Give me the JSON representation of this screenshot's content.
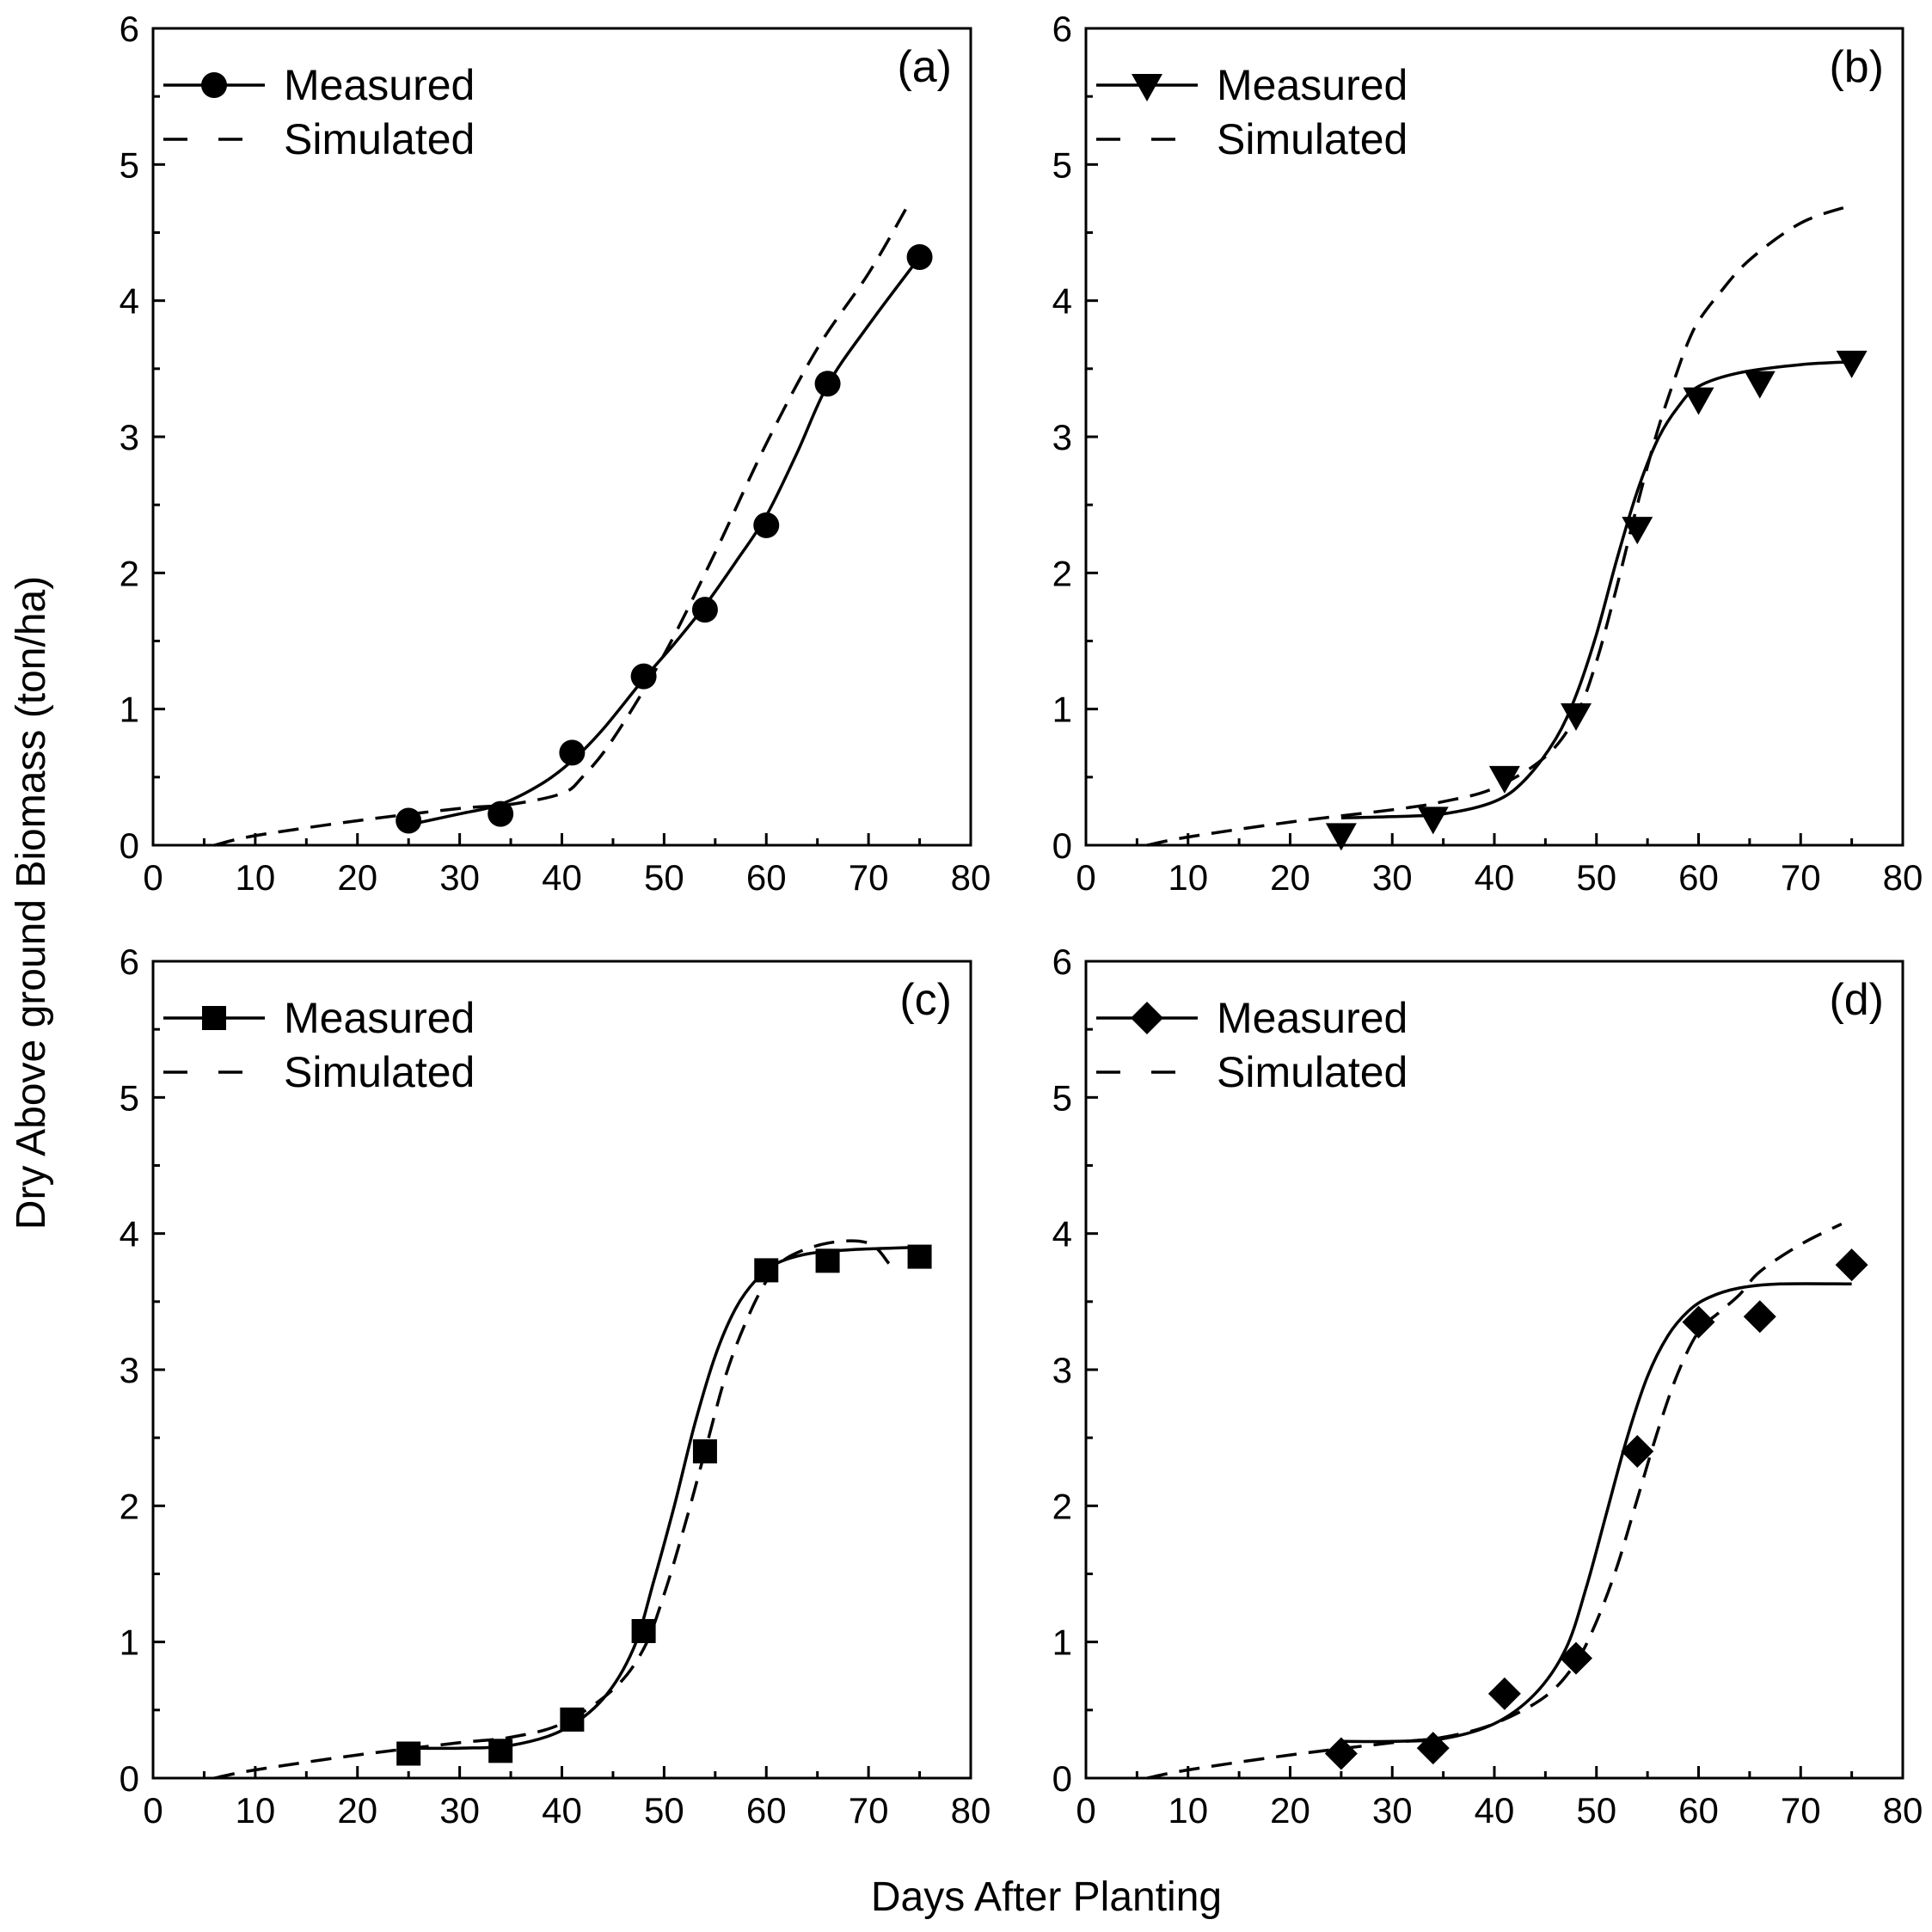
{
  "figure": {
    "y_axis_title": "Dry Above ground Biomass (ton/ha)",
    "x_axis_title": "Days After Planting"
  },
  "chart_data": [
    {
      "type": "line",
      "panel_label": "(a)",
      "marker": "circle",
      "xlim": [
        0,
        80
      ],
      "ylim": [
        0,
        6
      ],
      "xticks": [
        0,
        10,
        20,
        30,
        40,
        50,
        60,
        70,
        80
      ],
      "yticks": [
        0,
        1,
        2,
        3,
        4,
        5,
        6
      ],
      "legend": {
        "position": "top-left",
        "entries": [
          "Measured",
          "Simulated"
        ]
      },
      "series": [
        {
          "name": "Measured",
          "style": "solid",
          "x": [
            25,
            34,
            41,
            48,
            54,
            60,
            66,
            75
          ],
          "y": [
            0.18,
            0.23,
            0.68,
            1.24,
            1.73,
            2.35,
            3.39,
            4.32
          ]
        },
        {
          "name": "Measured (fitted curve)",
          "style": "solid",
          "x": [
            25,
            30,
            34,
            38,
            41,
            44,
            48,
            51,
            54,
            57,
            60,
            63,
            66,
            70,
            75
          ],
          "y": [
            0.15,
            0.23,
            0.3,
            0.45,
            0.62,
            0.85,
            1.22,
            1.48,
            1.76,
            2.08,
            2.42,
            2.88,
            3.38,
            3.82,
            4.32
          ]
        },
        {
          "name": "Simulated",
          "style": "dashed",
          "x": [
            6,
            10,
            20,
            30,
            35,
            40,
            42,
            45,
            50,
            55,
            60,
            65,
            70,
            74
          ],
          "y": [
            0,
            0.07,
            0.18,
            0.27,
            0.3,
            0.38,
            0.5,
            0.78,
            1.4,
            2.15,
            2.95,
            3.65,
            4.2,
            4.72
          ]
        }
      ]
    },
    {
      "type": "line",
      "panel_label": "(b)",
      "marker": "triangle-down",
      "xlim": [
        0,
        80
      ],
      "ylim": [
        0,
        6
      ],
      "xticks": [
        0,
        10,
        20,
        30,
        40,
        50,
        60,
        70,
        80
      ],
      "yticks": [
        0,
        1,
        2,
        3,
        4,
        5,
        6
      ],
      "legend": {
        "position": "top-left",
        "entries": [
          "Measured",
          "Simulated"
        ]
      },
      "series": [
        {
          "name": "Measured",
          "style": "solid",
          "x": [
            25,
            34,
            41,
            48,
            54,
            60,
            66,
            75
          ],
          "y": [
            0.08,
            0.2,
            0.5,
            0.96,
            2.33,
            3.28,
            3.4,
            3.55
          ]
        },
        {
          "name": "Measured (fitted curve)",
          "style": "solid",
          "x": [
            25,
            30,
            35,
            40,
            43,
            46,
            48,
            50,
            52,
            54,
            56,
            58,
            60,
            64,
            70,
            75
          ],
          "y": [
            0.2,
            0.21,
            0.23,
            0.32,
            0.48,
            0.78,
            1.1,
            1.55,
            2.1,
            2.6,
            2.98,
            3.22,
            3.37,
            3.47,
            3.53,
            3.55
          ]
        },
        {
          "name": "Simulated",
          "style": "dashed",
          "x": [
            6,
            10,
            20,
            30,
            35,
            40,
            45,
            48,
            50,
            52,
            54,
            56,
            58,
            59,
            60,
            62,
            65,
            70,
            75
          ],
          "y": [
            0,
            0.06,
            0.17,
            0.26,
            0.32,
            0.42,
            0.65,
            0.95,
            1.35,
            1.9,
            2.5,
            3.05,
            3.5,
            3.7,
            3.85,
            4.05,
            4.3,
            4.57,
            4.7
          ]
        }
      ]
    },
    {
      "type": "line",
      "panel_label": "(c)",
      "marker": "square",
      "xlim": [
        0,
        80
      ],
      "ylim": [
        0,
        6
      ],
      "xticks": [
        0,
        10,
        20,
        30,
        40,
        50,
        60,
        70,
        80
      ],
      "yticks": [
        0,
        1,
        2,
        3,
        4,
        5,
        6
      ],
      "legend": {
        "position": "top-left",
        "entries": [
          "Measured",
          "Simulated"
        ]
      },
      "series": [
        {
          "name": "Measured",
          "style": "solid",
          "x": [
            25,
            34,
            41,
            48,
            54,
            60,
            66,
            75
          ],
          "y": [
            0.18,
            0.2,
            0.43,
            1.08,
            2.4,
            3.73,
            3.8,
            3.83
          ]
        },
        {
          "name": "Measured (fitted curve)",
          "style": "solid",
          "x": [
            25,
            30,
            35,
            40,
            44,
            47,
            49,
            51,
            53,
            55,
            57,
            59,
            61,
            64,
            68,
            75
          ],
          "y": [
            0.22,
            0.22,
            0.24,
            0.35,
            0.58,
            0.95,
            1.45,
            2.0,
            2.6,
            3.1,
            3.45,
            3.66,
            3.78,
            3.85,
            3.88,
            3.9
          ]
        },
        {
          "name": "Simulated",
          "style": "dashed",
          "x": [
            6,
            10,
            20,
            30,
            35,
            40,
            45,
            48,
            50,
            52,
            54,
            56,
            58,
            60,
            62,
            66,
            70,
            72
          ],
          "y": [
            0,
            0.06,
            0.17,
            0.26,
            0.3,
            0.4,
            0.65,
            0.95,
            1.35,
            1.85,
            2.4,
            2.95,
            3.35,
            3.65,
            3.82,
            3.93,
            3.93,
            3.78
          ]
        }
      ]
    },
    {
      "type": "line",
      "panel_label": "(d)",
      "marker": "diamond",
      "xlim": [
        0,
        80
      ],
      "ylim": [
        0,
        6
      ],
      "xticks": [
        0,
        10,
        20,
        30,
        40,
        50,
        60,
        70,
        80
      ],
      "yticks": [
        0,
        1,
        2,
        3,
        4,
        5,
        6
      ],
      "legend": {
        "position": "top-left",
        "entries": [
          "Measured",
          "Simulated"
        ]
      },
      "series": [
        {
          "name": "Measured",
          "style": "solid",
          "x": [
            25,
            34,
            41,
            48,
            54,
            60,
            66,
            75
          ],
          "y": [
            0.18,
            0.22,
            0.62,
            0.88,
            2.4,
            3.35,
            3.39,
            3.77
          ]
        },
        {
          "name": "Measured (fitted curve)",
          "style": "solid",
          "x": [
            25,
            30,
            35,
            40,
            44,
            47,
            49,
            51,
            53,
            55,
            57,
            59,
            61,
            64,
            68,
            75
          ],
          "y": [
            0.27,
            0.27,
            0.29,
            0.4,
            0.62,
            0.95,
            1.4,
            1.95,
            2.5,
            2.95,
            3.25,
            3.43,
            3.53,
            3.6,
            3.63,
            3.63
          ]
        },
        {
          "name": "Simulated",
          "style": "dashed",
          "x": [
            6,
            10,
            20,
            30,
            35,
            40,
            45,
            48,
            50,
            52,
            54,
            56,
            58,
            60,
            62,
            64,
            66,
            70,
            74
          ],
          "y": [
            0,
            0.06,
            0.17,
            0.26,
            0.3,
            0.4,
            0.6,
            0.85,
            1.15,
            1.55,
            2.05,
            2.55,
            2.98,
            3.28,
            3.42,
            3.55,
            3.72,
            3.92,
            4.07
          ]
        }
      ]
    }
  ]
}
